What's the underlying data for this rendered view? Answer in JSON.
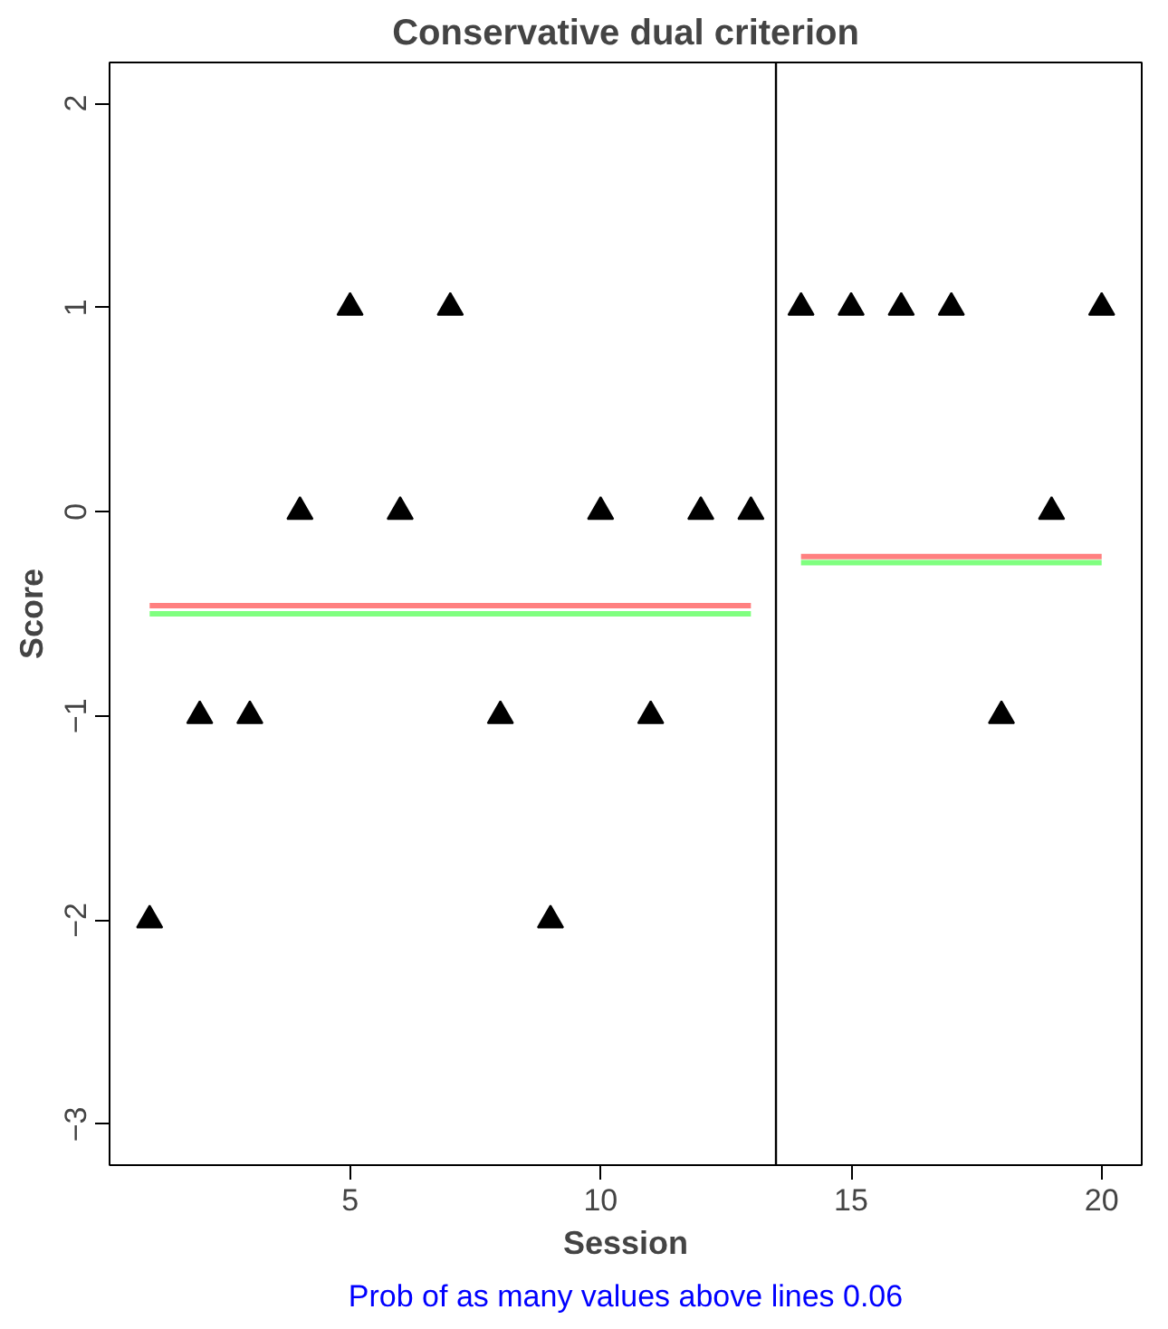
{
  "chart_data": {
    "type": "scatter",
    "title": "Conservative dual criterion",
    "xlabel": "Session",
    "ylabel": "Score",
    "annotations": [
      "Prob of as many values above lines 0.06"
    ],
    "x": [
      1,
      2,
      3,
      4,
      5,
      6,
      7,
      8,
      9,
      10,
      11,
      12,
      13,
      14,
      15,
      16,
      17,
      18,
      19,
      20
    ],
    "series": [
      {
        "color": "#000000",
        "marker": "triangle",
        "values": [
          -2,
          -1,
          -1,
          0,
          1,
          0,
          1,
          -1,
          -2,
          0,
          -1,
          0,
          0,
          1,
          1,
          1,
          1,
          -1,
          0,
          1
        ]
      },
      {
        "type": "line",
        "color": "#ff8080",
        "x": [
          1,
          13
        ],
        "values": [
          -0.46,
          -0.46
        ]
      },
      {
        "type": "line",
        "color": "#80ff80",
        "x": [
          1,
          13
        ],
        "values": [
          -0.5,
          -0.5
        ]
      },
      {
        "type": "line",
        "color": "#ff8080",
        "x": [
          14,
          20
        ],
        "values": [
          -0.22,
          -0.22
        ]
      },
      {
        "type": "line",
        "color": "#80ff80",
        "x": [
          14,
          20
        ],
        "values": [
          -0.25,
          -0.25
        ]
      }
    ],
    "ref_lines": [
      {
        "axis": "x",
        "value": 13.5,
        "color": "#000000"
      }
    ],
    "xlim": [
      0.2,
      20.8
    ],
    "ylim": [
      -3.2,
      2.2
    ],
    "xticks": [
      5,
      10,
      15,
      20
    ],
    "yticks": [
      -3,
      -2,
      -1,
      0,
      1,
      2
    ],
    "grid": false
  }
}
